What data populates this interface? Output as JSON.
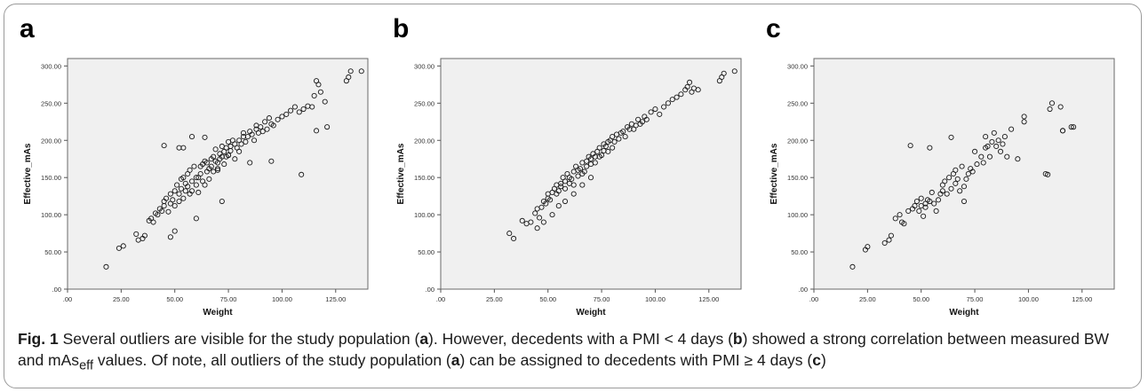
{
  "panels": [
    "a",
    "b",
    "c"
  ],
  "caption": {
    "figure_label": "Fig. 1",
    "t1": " Several outliers are visible for the study population (",
    "t2": "). However, decedents with a PMI < 4 days (",
    "t3": ") showed a strong correlation between measured BW and mAs",
    "eff_sub": "eff",
    "t4": " values. Of note, all outliers of the study population (",
    "t5": ") can be assigned to decedents with PMI ≥ 4 days (",
    "t6": ")"
  },
  "colors": {
    "plot_bg": "#f0f0f0",
    "marker_stroke": "#1a1a1a",
    "frame": "#9a9a9a"
  },
  "chart_data": [
    {
      "type": "scatter",
      "panel": "a",
      "xlabel": "Weight",
      "ylabel": "Effective_mAs",
      "xlim": [
        0,
        140
      ],
      "ylim": [
        0,
        310
      ],
      "xticks": [
        ".00",
        "25.00",
        "50.00",
        "75.00",
        "100.00",
        "125.00"
      ],
      "yticks": [
        ".00",
        "50.00",
        "100.00",
        "150.00",
        "200.00",
        "250.00",
        "300.00"
      ],
      "x": [
        18,
        24,
        26,
        32,
        33,
        35,
        36,
        38,
        39,
        40,
        41,
        42,
        43,
        44,
        45,
        45,
        46,
        47,
        48,
        48,
        49,
        50,
        50,
        51,
        52,
        52,
        53,
        53,
        54,
        54,
        55,
        55,
        56,
        56,
        57,
        57,
        58,
        58,
        59,
        60,
        60,
        61,
        61,
        62,
        62,
        63,
        63,
        64,
        64,
        65,
        65,
        66,
        66,
        67,
        67,
        68,
        68,
        69,
        69,
        70,
        70,
        71,
        71,
        72,
        72,
        73,
        73,
        74,
        74,
        75,
        75,
        76,
        76,
        77,
        78,
        78,
        79,
        80,
        80,
        81,
        82,
        82,
        83,
        84,
        85,
        86,
        87,
        88,
        88,
        89,
        90,
        91,
        92,
        93,
        94,
        95,
        96,
        98,
        100,
        102,
        104,
        106,
        108,
        110,
        112,
        114,
        115,
        116,
        117,
        118,
        120,
        130,
        131,
        132,
        137,
        45,
        54,
        52,
        64,
        109,
        116,
        121,
        60,
        72,
        48,
        75,
        50,
        85,
        95,
        70,
        58
      ],
      "y": [
        30,
        55,
        58,
        74,
        66,
        68,
        72,
        92,
        95,
        90,
        102,
        100,
        108,
        105,
        112,
        118,
        122,
        104,
        128,
        115,
        120,
        132,
        112,
        140,
        128,
        118,
        135,
        148,
        122,
        150,
        132,
        142,
        138,
        155,
        128,
        160,
        145,
        132,
        165,
        140,
        150,
        150,
        130,
        155,
        165,
        145,
        168,
        140,
        172,
        158,
        170,
        162,
        148,
        175,
        165,
        158,
        178,
        172,
        188,
        162,
        170,
        182,
        175,
        178,
        192,
        168,
        185,
        190,
        178,
        180,
        198,
        186,
        192,
        200,
        175,
        195,
        190,
        200,
        185,
        195,
        205,
        210,
        198,
        205,
        212,
        208,
        200,
        215,
        220,
        210,
        218,
        212,
        225,
        215,
        230,
        222,
        220,
        228,
        232,
        235,
        240,
        245,
        238,
        242,
        246,
        245,
        260,
        280,
        275,
        265,
        252,
        280,
        285,
        293,
        293,
        193,
        190,
        190,
        204,
        154,
        213,
        218,
        95,
        118,
        70,
        180,
        78,
        170,
        172,
        160,
        205
      ]
    },
    {
      "type": "scatter",
      "panel": "b",
      "xlabel": "Weight",
      "ylabel": "Effective_mAs",
      "xlim": [
        0,
        140
      ],
      "ylim": [
        0,
        310
      ],
      "xticks": [
        ".00",
        "25.00",
        "50.00",
        "75.00",
        "100.00",
        "125.00"
      ],
      "yticks": [
        ".00",
        "50.00",
        "100.00",
        "150.00",
        "200.00",
        "250.00",
        "300.00"
      ],
      "x": [
        32,
        34,
        38,
        40,
        42,
        44,
        45,
        46,
        47,
        48,
        49,
        50,
        50,
        51,
        52,
        53,
        54,
        54,
        55,
        56,
        56,
        57,
        58,
        58,
        59,
        60,
        60,
        61,
        62,
        62,
        63,
        64,
        64,
        65,
        66,
        66,
        67,
        68,
        68,
        69,
        70,
        70,
        71,
        72,
        72,
        73,
        74,
        74,
        75,
        76,
        76,
        77,
        78,
        78,
        79,
        80,
        80,
        81,
        82,
        83,
        84,
        85,
        86,
        87,
        88,
        89,
        90,
        91,
        92,
        93,
        94,
        95,
        96,
        98,
        100,
        102,
        104,
        106,
        108,
        110,
        112,
        114,
        115,
        116,
        117,
        118,
        120,
        130,
        131,
        132,
        137,
        45,
        48,
        52,
        55,
        58,
        62,
        66,
        70
      ],
      "y": [
        75,
        68,
        92,
        88,
        90,
        102,
        108,
        96,
        110,
        118,
        115,
        122,
        128,
        120,
        130,
        135,
        128,
        140,
        132,
        142,
        138,
        150,
        145,
        135,
        155,
        142,
        150,
        148,
        158,
        140,
        165,
        152,
        160,
        162,
        155,
        170,
        158,
        172,
        165,
        178,
        168,
        175,
        182,
        170,
        178,
        185,
        190,
        178,
        180,
        186,
        195,
        192,
        198,
        185,
        200,
        190,
        205,
        198,
        208,
        202,
        210,
        212,
        205,
        218,
        215,
        222,
        215,
        220,
        228,
        222,
        225,
        232,
        228,
        238,
        242,
        235,
        245,
        250,
        255,
        258,
        262,
        268,
        272,
        278,
        265,
        270,
        268,
        280,
        285,
        290,
        293,
        82,
        90,
        100,
        112,
        118,
        128,
        140,
        150
      ]
    },
    {
      "type": "scatter",
      "panel": "c",
      "xlabel": "Weight",
      "ylabel": "Effective_mAs",
      "xlim": [
        0,
        140
      ],
      "ylim": [
        0,
        310
      ],
      "xticks": [
        ".00",
        "25.00",
        "50.00",
        "75.00",
        "100.00",
        "125.00"
      ],
      "yticks": [
        ".00",
        "50.00",
        "100.00",
        "150.00",
        "200.00",
        "250.00",
        "300.00"
      ],
      "x": [
        18,
        24,
        25,
        33,
        35,
        36,
        38,
        40,
        41,
        42,
        44,
        46,
        47,
        48,
        49,
        50,
        50,
        51,
        52,
        52,
        53,
        54,
        55,
        56,
        57,
        58,
        59,
        60,
        60,
        61,
        62,
        63,
        64,
        65,
        66,
        66,
        67,
        68,
        69,
        70,
        70,
        71,
        72,
        73,
        74,
        75,
        76,
        78,
        79,
        80,
        80,
        81,
        82,
        83,
        84,
        85,
        86,
        87,
        88,
        89,
        90,
        92,
        95,
        98,
        98,
        108,
        110,
        111,
        115,
        116,
        120,
        45,
        54,
        64,
        109,
        116,
        121
      ],
      "y": [
        30,
        53,
        57,
        62,
        66,
        72,
        95,
        100,
        90,
        88,
        105,
        108,
        112,
        118,
        105,
        112,
        122,
        98,
        110,
        115,
        120,
        118,
        130,
        115,
        105,
        120,
        128,
        140,
        132,
        145,
        128,
        150,
        135,
        155,
        142,
        160,
        148,
        132,
        165,
        118,
        138,
        148,
        155,
        162,
        158,
        185,
        168,
        178,
        170,
        190,
        205,
        192,
        178,
        198,
        210,
        192,
        200,
        185,
        195,
        205,
        178,
        215,
        175,
        225,
        232,
        155,
        242,
        250,
        245,
        213,
        218,
        193,
        190,
        204,
        154,
        213,
        218
      ]
    }
  ]
}
